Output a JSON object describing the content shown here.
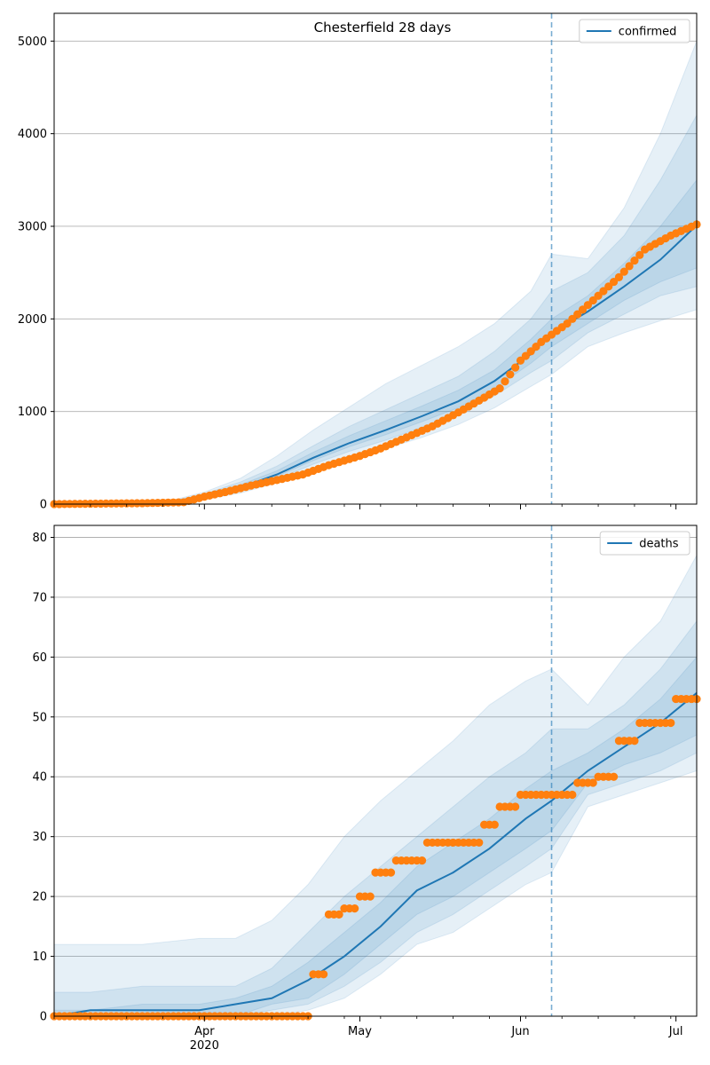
{
  "colors": {
    "model": "#1f77b4",
    "observed": "#ff7f0e",
    "band": "#1f77b4",
    "grid": "#b0b0b0",
    "cutoff": "#1f77b4"
  },
  "chart_data": [
    {
      "type": "line",
      "title": "Chesterfield 28 days",
      "legend": [
        "confirmed"
      ],
      "legend_position": "top-right",
      "x_range": [
        "2020-03-03",
        "2020-07-05"
      ],
      "cutoff_date": "2020-06-07",
      "ylim": [
        0,
        5300
      ],
      "yticks": [
        0,
        1000,
        2000,
        3000,
        4000,
        5000
      ],
      "grid": true,
      "model": {
        "dates": [
          "2020-03-03",
          "2020-03-15",
          "2020-03-25",
          "2020-04-01",
          "2020-04-08",
          "2020-04-15",
          "2020-04-22",
          "2020-04-29",
          "2020-05-06",
          "2020-05-13",
          "2020-05-20",
          "2020-05-27",
          "2020-06-03",
          "2020-06-07",
          "2020-06-14",
          "2020-06-21",
          "2020-06-28",
          "2020-07-05"
        ],
        "values": [
          0,
          3,
          15,
          80,
          180,
          320,
          500,
          660,
          800,
          950,
          1110,
          1330,
          1620,
          1850,
          2080,
          2350,
          2640,
          3010
        ]
      },
      "bands": [
        {
          "lower": [
            0,
            0,
            5,
            50,
            120,
            230,
            370,
            490,
            600,
            720,
            860,
            1040,
            1270,
            1400,
            1700,
            1850,
            1980,
            2100
          ],
          "upper": [
            0,
            8,
            30,
            130,
            280,
            520,
            800,
            1050,
            1300,
            1500,
            1700,
            1950,
            2300,
            2700,
            2650,
            3200,
            4000,
            5000
          ]
        },
        {
          "lower": [
            0,
            1,
            8,
            60,
            140,
            270,
            430,
            570,
            690,
            830,
            970,
            1170,
            1420,
            1550,
            1850,
            2050,
            2250,
            2350
          ],
          "upper": [
            0,
            6,
            25,
            110,
            240,
            410,
            630,
            840,
            1020,
            1200,
            1380,
            1650,
            2000,
            2300,
            2500,
            2900,
            3500,
            4200
          ]
        },
        {
          "lower": [
            0,
            2,
            11,
            70,
            160,
            300,
            470,
            620,
            750,
            890,
            1040,
            1250,
            1520,
            1700,
            1950,
            2200,
            2400,
            2550
          ],
          "upper": [
            0,
            4,
            19,
            95,
            210,
            360,
            560,
            740,
            900,
            1060,
            1230,
            1450,
            1780,
            2000,
            2250,
            2600,
            3000,
            3500
          ]
        }
      ],
      "observed": {
        "dates": [
          "2020-03-03",
          "2020-03-20",
          "2020-03-28",
          "2020-04-01",
          "2020-04-05",
          "2020-04-10",
          "2020-04-15",
          "2020-04-20",
          "2020-04-25",
          "2020-05-01",
          "2020-05-05",
          "2020-05-10",
          "2020-05-15",
          "2020-05-20",
          "2020-05-25",
          "2020-05-28",
          "2020-06-01",
          "2020-06-05",
          "2020-06-10",
          "2020-06-15",
          "2020-06-20",
          "2020-06-25",
          "2020-06-30",
          "2020-07-05"
        ],
        "values": [
          0,
          10,
          20,
          80,
          130,
          200,
          260,
          320,
          420,
          520,
          600,
          720,
          840,
          990,
          1150,
          1250,
          1550,
          1750,
          1950,
          2200,
          2450,
          2750,
          2900,
          3020
        ]
      }
    },
    {
      "type": "line",
      "title": "",
      "legend": [
        "deaths"
      ],
      "legend_position": "top-right",
      "x_range": [
        "2020-03-03",
        "2020-07-05"
      ],
      "cutoff_date": "2020-06-07",
      "ylim": [
        0,
        82
      ],
      "yticks": [
        0,
        10,
        20,
        30,
        40,
        50,
        60,
        70,
        80
      ],
      "xticks": [
        {
          "date": "2020-04-01",
          "label": "Apr",
          "sublabel": "2020"
        },
        {
          "date": "2020-05-01",
          "label": "May",
          "sublabel": ""
        },
        {
          "date": "2020-06-01",
          "label": "Jun",
          "sublabel": ""
        },
        {
          "date": "2020-07-01",
          "label": "Jul",
          "sublabel": ""
        }
      ],
      "grid": true,
      "model": {
        "dates": [
          "2020-03-03",
          "2020-03-10",
          "2020-03-20",
          "2020-03-31",
          "2020-04-07",
          "2020-04-14",
          "2020-04-21",
          "2020-04-28",
          "2020-05-05",
          "2020-05-12",
          "2020-05-19",
          "2020-05-26",
          "2020-06-02",
          "2020-06-07",
          "2020-06-14",
          "2020-06-21",
          "2020-06-28",
          "2020-07-05"
        ],
        "values": [
          0,
          1,
          1,
          1,
          2,
          3,
          6,
          10,
          15,
          21,
          24,
          28,
          33,
          36,
          41,
          45,
          49,
          54
        ]
      },
      "bands": [
        {
          "lower": [
            0,
            0,
            0,
            0,
            0,
            0,
            1,
            3,
            7,
            12,
            14,
            18,
            22,
            24,
            35,
            37,
            39,
            41
          ],
          "upper": [
            12,
            12,
            12,
            13,
            13,
            16,
            22,
            30,
            36,
            41,
            46,
            52,
            56,
            58,
            52,
            60,
            66,
            77
          ]
        },
        {
          "lower": [
            0,
            0,
            0,
            0,
            0,
            1,
            2,
            5,
            9,
            14,
            17,
            21,
            25,
            28,
            37,
            39,
            41,
            44
          ],
          "upper": [
            4,
            4,
            5,
            5,
            5,
            8,
            14,
            20,
            25,
            30,
            35,
            40,
            44,
            48,
            48,
            52,
            58,
            66
          ]
        },
        {
          "lower": [
            0,
            0,
            0,
            0,
            0,
            2,
            3,
            7,
            12,
            17,
            20,
            24,
            28,
            31,
            39,
            42,
            44,
            47
          ],
          "upper": [
            1,
            1,
            2,
            2,
            3,
            5,
            9,
            14,
            19,
            25,
            29,
            33,
            38,
            41,
            44,
            48,
            53,
            60
          ]
        }
      ],
      "observed": {
        "dates": [
          "2020-03-03",
          "2020-04-20",
          "2020-04-22",
          "2020-04-25",
          "2020-04-28",
          "2020-05-01",
          "2020-05-04",
          "2020-05-08",
          "2020-05-12",
          "2020-05-14",
          "2020-05-18",
          "2020-05-22",
          "2020-05-25",
          "2020-05-28",
          "2020-06-01",
          "2020-06-05",
          "2020-06-09",
          "2020-06-12",
          "2020-06-16",
          "2020-06-20",
          "2020-06-24",
          "2020-06-28",
          "2020-07-01",
          "2020-07-05"
        ],
        "values": [
          0,
          0,
          7,
          17,
          18,
          20,
          24,
          26,
          26,
          29,
          29,
          29,
          32,
          35,
          37,
          37,
          37,
          39,
          40,
          46,
          49,
          49,
          53,
          53
        ]
      }
    }
  ]
}
